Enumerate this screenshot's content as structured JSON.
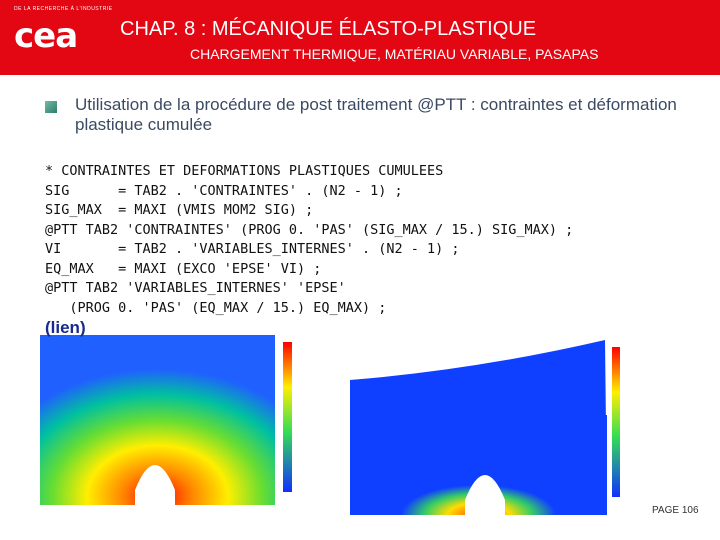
{
  "header": {
    "tagline": "DE LA RECHERCHE À L'INDUSTRIE",
    "logo": "cea",
    "title": "CHAP. 8 : MÉCANIQUE ÉLASTO-PLASTIQUE",
    "subtitle": "CHARGEMENT THERMIQUE, MATÉRIAU VARIABLE, PASAPAS"
  },
  "bullet": "Utilisation de la procédure de post traitement @PTT : contraintes et déformation plastique cumulée",
  "code": [
    "* CONTRAINTES ET DEFORMATIONS PLASTIQUES CUMULEES",
    "SIG      = TAB2 . 'CONTRAINTES' . (N2 - 1) ;",
    "SIG_MAX  = MAXI (VMIS MOM2 SIG) ;",
    "@PTT TAB2 'CONTRAINTES' (PROG 0. 'PAS' (SIG_MAX / 15.) SIG_MAX) ;",
    "VI       = TAB2 . 'VARIABLES_INTERNES' . (N2 - 1) ;",
    "EQ_MAX   = MAXI (EXCO 'EPSE' VI) ;",
    "@PTT TAB2 'VARIABLES_INTERNES' 'EPSE'",
    "   (PROG 0. 'PAS' (EQ_MAX / 15.) EQ_MAX) ;"
  ],
  "link": "(lien)",
  "footer": {
    "page": "PAGE 106"
  }
}
